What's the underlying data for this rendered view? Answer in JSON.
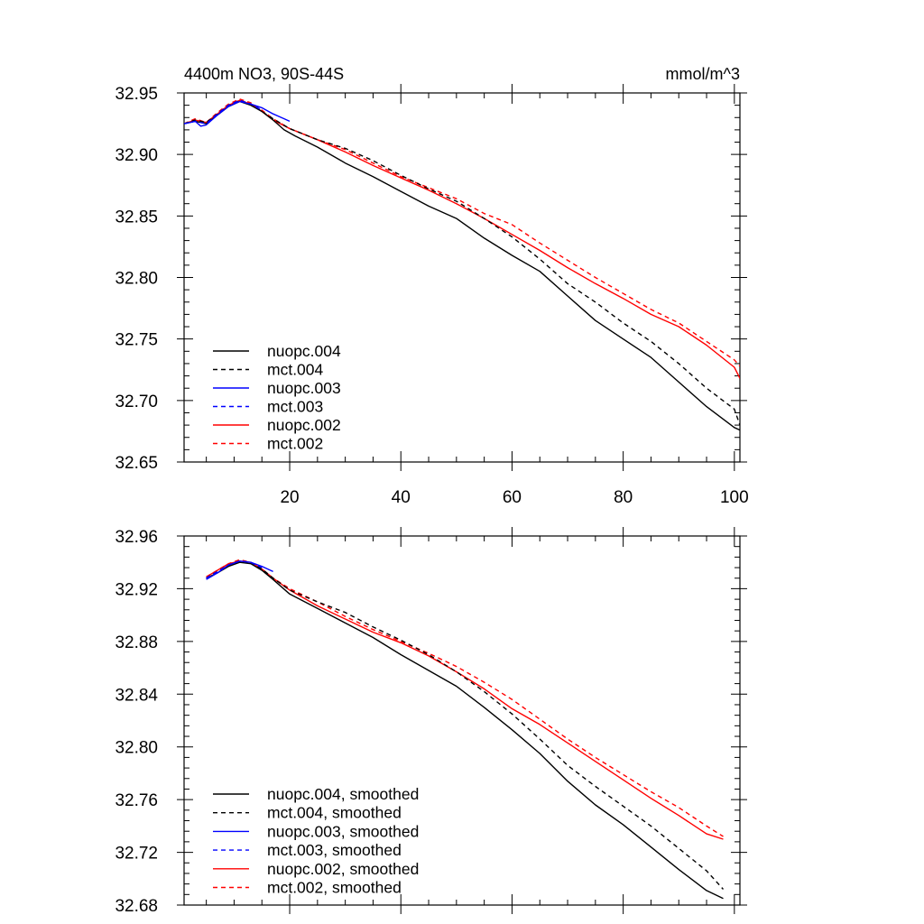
{
  "chart_data": [
    {
      "type": "line",
      "title": "4400m NO3, 90S-44S",
      "units": "mmol/m^3",
      "xlim": [
        1,
        101
      ],
      "ylim": [
        32.65,
        32.95
      ],
      "xticks": [
        20,
        40,
        60,
        80,
        100
      ],
      "yticks": [
        32.65,
        32.7,
        32.75,
        32.8,
        32.85,
        32.9,
        32.95
      ],
      "ytick_labels": [
        "32.65",
        "32.70",
        "32.75",
        "32.80",
        "32.85",
        "32.90",
        "32.95"
      ],
      "legend_position": "bottom-left",
      "series": [
        {
          "name": "nuopc.004",
          "color": "#000000",
          "style": "solid",
          "x": [
            1,
            3,
            5,
            7,
            9,
            11,
            13,
            15,
            17,
            19,
            21,
            25,
            30,
            35,
            40,
            45,
            50,
            55,
            60,
            65,
            70,
            75,
            80,
            85,
            90,
            95,
            100,
            101
          ],
          "y": [
            32.925,
            32.927,
            32.925,
            32.932,
            32.939,
            32.943,
            32.94,
            32.935,
            32.928,
            32.92,
            32.915,
            32.906,
            32.893,
            32.882,
            32.87,
            32.858,
            32.848,
            32.832,
            32.818,
            32.805,
            32.785,
            32.765,
            32.75,
            32.735,
            32.715,
            32.695,
            32.678,
            32.676
          ]
        },
        {
          "name": "mct.004",
          "color": "#000000",
          "style": "dashed",
          "x": [
            1,
            3,
            5,
            7,
            9,
            11,
            13,
            15,
            17,
            20,
            25,
            30,
            35,
            40,
            45,
            50,
            55,
            60,
            65,
            70,
            75,
            80,
            85,
            90,
            95,
            100,
            101
          ],
          "y": [
            32.925,
            32.928,
            32.926,
            32.933,
            32.94,
            32.944,
            32.941,
            32.935,
            32.929,
            32.921,
            32.912,
            32.905,
            32.895,
            32.883,
            32.872,
            32.862,
            32.848,
            32.833,
            32.815,
            32.795,
            32.78,
            32.763,
            32.748,
            32.73,
            32.71,
            32.693,
            32.68
          ]
        },
        {
          "name": "nuopc.003",
          "color": "#0000ff",
          "style": "solid",
          "x": [
            1,
            3,
            4,
            5,
            7,
            9,
            11,
            13,
            15,
            17,
            19,
            20
          ],
          "y": [
            32.925,
            32.927,
            32.923,
            32.924,
            32.932,
            32.939,
            32.943,
            32.941,
            32.938,
            32.933,
            32.929,
            32.927
          ]
        },
        {
          "name": "mct.003",
          "color": "#0000ff",
          "style": "dashed",
          "x": [
            1,
            3,
            5,
            7,
            9,
            11,
            13,
            15
          ],
          "y": [
            32.925,
            32.927,
            32.925,
            32.933,
            32.94,
            32.944,
            32.941,
            32.936
          ]
        },
        {
          "name": "nuopc.002",
          "color": "#ff0000",
          "style": "solid",
          "x": [
            1,
            3,
            5,
            7,
            9,
            11,
            13,
            15,
            17,
            20,
            25,
            30,
            35,
            40,
            45,
            50,
            55,
            60,
            65,
            70,
            75,
            80,
            85,
            90,
            95,
            100,
            101
          ],
          "y": [
            32.925,
            32.928,
            32.926,
            32.933,
            32.94,
            32.944,
            32.941,
            32.935,
            32.928,
            32.921,
            32.912,
            32.902,
            32.891,
            32.881,
            32.871,
            32.86,
            32.848,
            32.835,
            32.822,
            32.808,
            32.795,
            32.783,
            32.77,
            32.76,
            32.745,
            32.727,
            32.718
          ]
        },
        {
          "name": "mct.002",
          "color": "#ff0000",
          "style": "dashed",
          "x": [
            1,
            3,
            5,
            7,
            9,
            11,
            13,
            15,
            17,
            20,
            25,
            30,
            35,
            40,
            45,
            50,
            55,
            60,
            65,
            70,
            75,
            80,
            85,
            90,
            95,
            100,
            101
          ],
          "y": [
            32.925,
            32.929,
            32.926,
            32.934,
            32.941,
            32.945,
            32.942,
            32.936,
            32.929,
            32.921,
            32.912,
            32.904,
            32.893,
            32.882,
            32.873,
            32.864,
            32.852,
            32.843,
            32.828,
            32.814,
            32.8,
            32.787,
            32.774,
            32.763,
            32.748,
            32.733,
            32.728
          ]
        }
      ]
    },
    {
      "type": "line",
      "xlim": [
        1,
        101
      ],
      "ylim": [
        32.68,
        32.96
      ],
      "xticks": [
        20,
        40,
        60,
        80,
        100
      ],
      "yticks": [
        32.68,
        32.72,
        32.76,
        32.8,
        32.84,
        32.88,
        32.92,
        32.96
      ],
      "ytick_labels": [
        "32.68",
        "32.72",
        "32.76",
        "32.80",
        "32.84",
        "32.88",
        "32.92",
        "32.96"
      ],
      "legend_position": "bottom-left",
      "series": [
        {
          "name": "nuopc.004, smoothed",
          "color": "#000000",
          "style": "solid",
          "x": [
            5,
            7,
            9,
            11,
            13,
            15,
            17,
            20,
            25,
            30,
            35,
            40,
            45,
            50,
            55,
            60,
            65,
            70,
            75,
            80,
            85,
            90,
            95,
            98
          ],
          "y": [
            32.928,
            32.932,
            32.937,
            32.94,
            32.939,
            32.934,
            32.927,
            32.916,
            32.905,
            32.894,
            32.883,
            32.87,
            32.858,
            32.846,
            32.83,
            32.813,
            32.795,
            32.774,
            32.756,
            32.741,
            32.724,
            32.707,
            32.691,
            32.685
          ]
        },
        {
          "name": "mct.004, smoothed",
          "color": "#000000",
          "style": "dashed",
          "x": [
            5,
            7,
            9,
            11,
            13,
            15,
            17,
            20,
            25,
            30,
            35,
            40,
            45,
            50,
            55,
            60,
            65,
            70,
            75,
            80,
            85,
            90,
            95,
            98
          ],
          "y": [
            32.928,
            32.933,
            32.938,
            32.941,
            32.94,
            32.935,
            32.928,
            32.919,
            32.91,
            32.902,
            32.891,
            32.881,
            32.87,
            32.857,
            32.842,
            32.825,
            32.806,
            32.786,
            32.77,
            32.755,
            32.74,
            32.723,
            32.706,
            32.692
          ]
        },
        {
          "name": "nuopc.003, smoothed",
          "color": "#0000ff",
          "style": "solid",
          "x": [
            5,
            7,
            9,
            11,
            13,
            15,
            17
          ],
          "y": [
            32.927,
            32.932,
            32.938,
            32.941,
            32.94,
            32.937,
            32.933
          ]
        },
        {
          "name": "mct.003, smoothed",
          "color": "#0000ff",
          "style": "dashed",
          "x": [
            5,
            7,
            9,
            11,
            13,
            15
          ],
          "y": [
            32.928,
            32.933,
            32.938,
            32.941,
            32.94,
            32.936
          ]
        },
        {
          "name": "nuopc.002, smoothed",
          "color": "#ff0000",
          "style": "solid",
          "x": [
            5,
            7,
            9,
            11,
            13,
            15,
            17,
            20,
            25,
            30,
            35,
            40,
            45,
            50,
            55,
            60,
            65,
            70,
            75,
            80,
            85,
            90,
            95,
            98
          ],
          "y": [
            32.929,
            32.934,
            32.939,
            32.941,
            32.94,
            32.935,
            32.928,
            32.919,
            32.907,
            32.897,
            32.887,
            32.879,
            32.869,
            32.857,
            32.844,
            32.829,
            32.817,
            32.803,
            32.789,
            32.775,
            32.761,
            32.748,
            32.734,
            32.73
          ]
        },
        {
          "name": "mct.002, smoothed",
          "color": "#ff0000",
          "style": "dashed",
          "x": [
            5,
            7,
            9,
            11,
            13,
            15,
            17,
            20,
            25,
            30,
            35,
            40,
            45,
            50,
            55,
            60,
            65,
            70,
            75,
            80,
            85,
            90,
            95,
            98
          ],
          "y": [
            32.929,
            32.934,
            32.939,
            32.942,
            32.94,
            32.935,
            32.928,
            32.92,
            32.91,
            32.899,
            32.889,
            32.88,
            32.871,
            32.861,
            32.849,
            32.836,
            32.821,
            32.806,
            32.792,
            32.779,
            32.766,
            32.754,
            32.74,
            32.732
          ]
        }
      ]
    }
  ]
}
